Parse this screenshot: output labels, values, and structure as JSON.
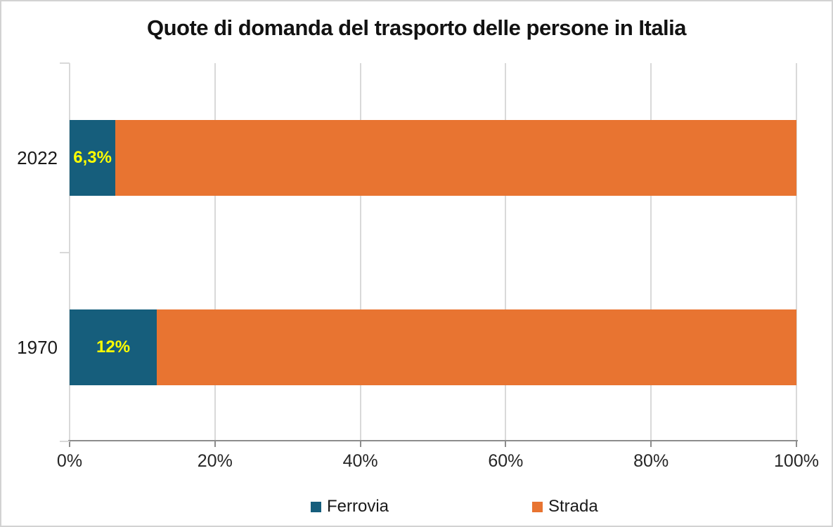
{
  "chart_data": {
    "type": "bar",
    "orientation": "horizontal",
    "stacked": true,
    "title": "Quote di domanda del trasporto delle persone in Italia",
    "categories": [
      "2022",
      "1970"
    ],
    "series": [
      {
        "name": "Ferrovia",
        "color": "#165E7C",
        "values": [
          6.3,
          12
        ]
      },
      {
        "name": "Strada",
        "color": "#E87431",
        "values": [
          93.7,
          88
        ]
      }
    ],
    "data_labels": {
      "on_series": "Ferrovia",
      "color": "#FFFF00",
      "values": [
        "6,3%",
        "12%"
      ]
    },
    "x_axis": {
      "range": [
        0,
        100
      ],
      "tick_labels": [
        "0%",
        "20%",
        "40%",
        "60%",
        "80%",
        "100%"
      ],
      "grid": true
    },
    "legend": {
      "position": "bottom",
      "entries": [
        "Ferrovia",
        "Strada"
      ]
    },
    "colors": {
      "gridline": "#D9D9D9",
      "axis_line": "#8C8C8C",
      "tick_text": "#262626",
      "title_text": "#121212",
      "frame_border": "#D2D2D2",
      "background": "#FFFFFF"
    }
  }
}
